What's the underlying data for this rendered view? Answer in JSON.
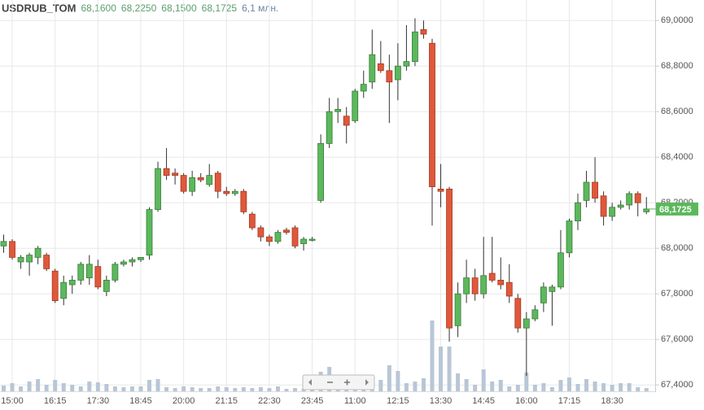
{
  "chart_data": {
    "type": "candlestick",
    "title": "USDRUB_TOM",
    "info": [
      "68,1600",
      "68,2250",
      "68,1500",
      "68,1725",
      "6,1 млн."
    ],
    "categories": [
      null,
      "15:00",
      null,
      null,
      null,
      null,
      "16:15",
      null,
      null,
      null,
      null,
      "17:30",
      null,
      null,
      null,
      null,
      "18:45",
      null,
      null,
      null,
      null,
      "20:00",
      null,
      null,
      null,
      null,
      "21:15",
      null,
      null,
      null,
      null,
      "22:30",
      null,
      null,
      null,
      null,
      "23:45",
      null,
      null,
      null,
      null,
      "11:00",
      null,
      null,
      null,
      null,
      "12:15",
      null,
      null,
      null,
      null,
      "13:30",
      null,
      null,
      null,
      null,
      "14:45",
      null,
      null,
      null,
      null,
      "16:00",
      null,
      null,
      null,
      null,
      "17:15",
      null,
      null,
      null,
      null,
      "18:30",
      null,
      null,
      null,
      null
    ],
    "open": [
      68.01,
      68.03,
      67.94,
      67.94,
      67.96,
      67.97,
      67.9,
      67.78,
      67.84,
      67.86,
      67.87,
      67.92,
      67.81,
      67.86,
      67.93,
      67.94,
      67.95,
      67.97,
      68.17,
      68.35,
      68.33,
      68.32,
      68.25,
      68.31,
      68.28,
      68.33,
      68.25,
      68.24,
      68.25,
      68.15,
      68.09,
      68.05,
      68.03,
      68.08,
      68.09,
      68.02,
      68.04,
      68.21,
      68.46,
      68.6,
      68.58,
      68.56,
      68.69,
      68.73,
      68.81,
      68.78,
      68.74,
      68.8,
      68.82,
      68.96,
      68.9,
      68.26,
      68.26,
      67.66,
      67.8,
      67.87,
      67.8,
      67.89,
      67.86,
      67.85,
      67.78,
      67.65,
      67.69,
      67.76,
      67.81,
      67.83,
      67.98,
      68.12,
      68.21,
      68.29,
      68.23,
      68.14,
      68.18,
      68.19,
      68.24,
      68.16
    ],
    "high": [
      68.06,
      68.04,
      67.97,
      67.98,
      68.01,
      67.98,
      67.91,
      67.88,
      67.88,
      67.94,
      67.97,
      67.95,
      67.88,
      67.94,
      67.95,
      67.96,
      67.96,
      68.18,
      68.38,
      68.44,
      68.35,
      68.33,
      68.34,
      68.33,
      68.37,
      68.34,
      68.27,
      68.26,
      68.26,
      68.16,
      68.1,
      68.06,
      68.08,
      68.09,
      68.1,
      68.05,
      68.05,
      68.5,
      68.66,
      68.66,
      68.62,
      68.7,
      68.78,
      68.96,
      68.91,
      68.85,
      68.9,
      68.98,
      69.01,
      69.0,
      68.92,
      68.37,
      68.27,
      67.85,
      67.95,
      67.91,
      68.05,
      68.05,
      67.96,
      67.93,
      67.8,
      67.72,
      67.75,
      67.85,
      67.84,
      68.08,
      68.13,
      68.24,
      68.34,
      68.4,
      68.25,
      68.2,
      68.21,
      68.25,
      68.25,
      68.225
    ],
    "low": [
      67.98,
      67.95,
      67.91,
      67.88,
      67.93,
      67.9,
      67.76,
      67.75,
      67.8,
      67.84,
      67.84,
      67.82,
      67.79,
      67.85,
      67.92,
      67.92,
      67.94,
      67.95,
      68.16,
      68.3,
      68.28,
      68.24,
      68.23,
      68.29,
      68.27,
      68.22,
      68.23,
      68.23,
      68.15,
      68.08,
      68.03,
      68.01,
      68.02,
      68.06,
      68.0,
      67.99,
      68.03,
      68.2,
      68.44,
      68.55,
      68.46,
      68.55,
      68.66,
      68.7,
      68.77,
      68.55,
      68.65,
      68.78,
      68.8,
      68.92,
      68.1,
      68.18,
      67.59,
      67.61,
      67.76,
      67.77,
      67.78,
      67.85,
      67.82,
      67.76,
      67.63,
      67.44,
      67.68,
      67.72,
      67.66,
      67.82,
      67.96,
      68.08,
      68.18,
      68.2,
      68.1,
      68.12,
      68.17,
      68.17,
      68.14,
      68.15
    ],
    "close": [
      68.03,
      67.96,
      67.96,
      67.97,
      68.0,
      67.91,
      67.77,
      67.85,
      67.86,
      67.93,
      67.93,
      67.83,
      67.86,
      67.93,
      67.94,
      67.95,
      67.96,
      68.17,
      68.35,
      68.32,
      68.32,
      68.25,
      68.31,
      68.3,
      68.32,
      68.25,
      68.24,
      68.25,
      68.16,
      68.09,
      68.05,
      68.03,
      68.07,
      68.07,
      68.01,
      68.04,
      68.04,
      68.46,
      68.6,
      68.61,
      68.54,
      68.69,
      68.72,
      68.85,
      68.78,
      68.73,
      68.8,
      68.82,
      68.95,
      68.94,
      68.27,
      68.25,
      67.65,
      67.8,
      67.87,
      67.8,
      67.88,
      67.86,
      67.84,
      67.79,
      67.65,
      67.69,
      67.73,
      67.83,
      67.83,
      67.98,
      68.12,
      68.2,
      68.29,
      68.22,
      68.14,
      68.18,
      68.19,
      68.24,
      68.2,
      68.1725
    ],
    "volume": [
      7,
      10,
      6,
      12,
      15,
      8,
      14,
      10,
      8,
      6,
      12,
      11,
      9,
      6,
      5,
      6,
      6,
      14,
      15,
      5,
      4,
      6,
      5,
      4,
      4,
      6,
      5,
      4,
      5,
      4,
      5,
      4,
      6,
      3,
      4,
      3,
      2,
      24,
      30,
      15,
      10,
      12,
      8,
      10,
      14,
      32,
      25,
      10,
      12,
      16,
      87,
      55,
      55,
      22,
      15,
      8,
      27,
      12,
      14,
      6,
      8,
      23,
      8,
      10,
      5,
      14,
      17,
      9,
      15,
      12,
      10,
      8,
      10,
      10,
      5,
      4
    ],
    "volume_lim": [
      0,
      100
    ],
    "up_color": "#5cb85c",
    "down_color": "#e0583b",
    "volume_color": "#b8c6d6",
    "ylim": [
      67.34,
      69.09
    ],
    "yticks": [
      {
        "value": 67.4,
        "label": "67,4000"
      },
      {
        "value": 67.6,
        "label": "67,6000"
      },
      {
        "value": 67.8,
        "label": "67,8000"
      },
      {
        "value": 68.0,
        "label": "68,0000"
      },
      {
        "value": 68.2,
        "label": "68,2000"
      },
      {
        "value": 68.4,
        "label": "68,4000"
      },
      {
        "value": 68.6,
        "label": "68,6000"
      },
      {
        "value": 68.8,
        "label": "68,8000"
      },
      {
        "value": 69.0,
        "label": "69,0000"
      }
    ],
    "last_price": {
      "value": 68.1725,
      "label": "68,1725"
    },
    "grid": true
  }
}
